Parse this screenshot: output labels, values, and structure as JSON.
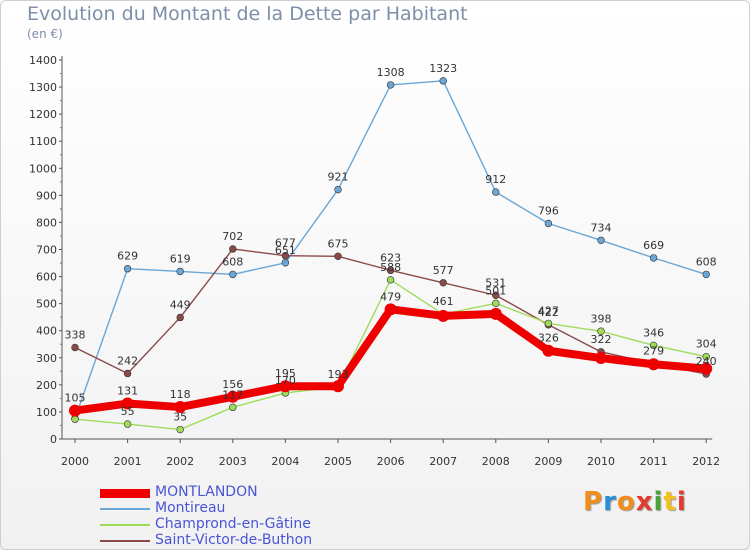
{
  "title": "Evolution du Montant de la Dette par Habitant",
  "subtitle": "(en €)",
  "logo": {
    "text": "Proxiti",
    "letters": [
      "P",
      "r",
      "o",
      "x",
      "i",
      "t",
      "i"
    ],
    "colors": [
      "#f28c1a",
      "#2a8fd6",
      "#f28c1a",
      "#e23b2f",
      "#4aa33a",
      "#f2c11a",
      "#e23b2f"
    ]
  },
  "chart_data": {
    "type": "line",
    "x": [
      "2000",
      "2001",
      "2002",
      "2003",
      "2004",
      "2005",
      "2006",
      "2007",
      "2008",
      "2009",
      "2010",
      "2011",
      "2012"
    ],
    "ylim": [
      0,
      1400
    ],
    "yticks": [
      0,
      100,
      200,
      300,
      400,
      500,
      600,
      700,
      800,
      900,
      1000,
      1100,
      1200,
      1300,
      1400
    ],
    "grid": false,
    "legend_position": "bottom-left",
    "series": [
      {
        "name": "MONTLANDON",
        "color": "#ee0000",
        "values": [
          105,
          131,
          118,
          156,
          195,
          195,
          479,
          455,
          462,
          326,
          299,
          276,
          260
        ],
        "labels": [
          "105",
          "131",
          "118",
          "156",
          "195",
          "",
          "479",
          "",
          "",
          "326",
          "",
          "",
          ""
        ]
      },
      {
        "name": "Montireau",
        "color": "#6aa6d6",
        "values": [
          76,
          629,
          619,
          608,
          651,
          921,
          1308,
          1323,
          912,
          796,
          734,
          669,
          608
        ],
        "labels": [
          "",
          "629",
          "619",
          "608",
          "651",
          "921",
          "1308",
          "1323",
          "912",
          "796",
          "734",
          "669",
          "608"
        ]
      },
      {
        "name": "Champrond-en-Gâtine",
        "color": "#9fdc5a",
        "values": [
          73,
          55,
          35,
          117,
          170,
          193,
          588,
          461,
          501,
          427,
          398,
          346,
          304
        ],
        "labels": [
          "",
          "55",
          "35",
          "117",
          "170",
          "193",
          "588",
          "461",
          "501",
          "427",
          "398",
          "346",
          "304"
        ]
      },
      {
        "name": "Saint-Victor-de-Buthon",
        "color": "#8b4a4a",
        "values": [
          338,
          242,
          449,
          702,
          677,
          675,
          623,
          577,
          531,
          422,
          322,
          279,
          240
        ],
        "labels": [
          "338",
          "242",
          "449",
          "702",
          "677",
          "675",
          "623",
          "577",
          "531",
          "422",
          "322",
          "279",
          "240"
        ]
      }
    ]
  }
}
